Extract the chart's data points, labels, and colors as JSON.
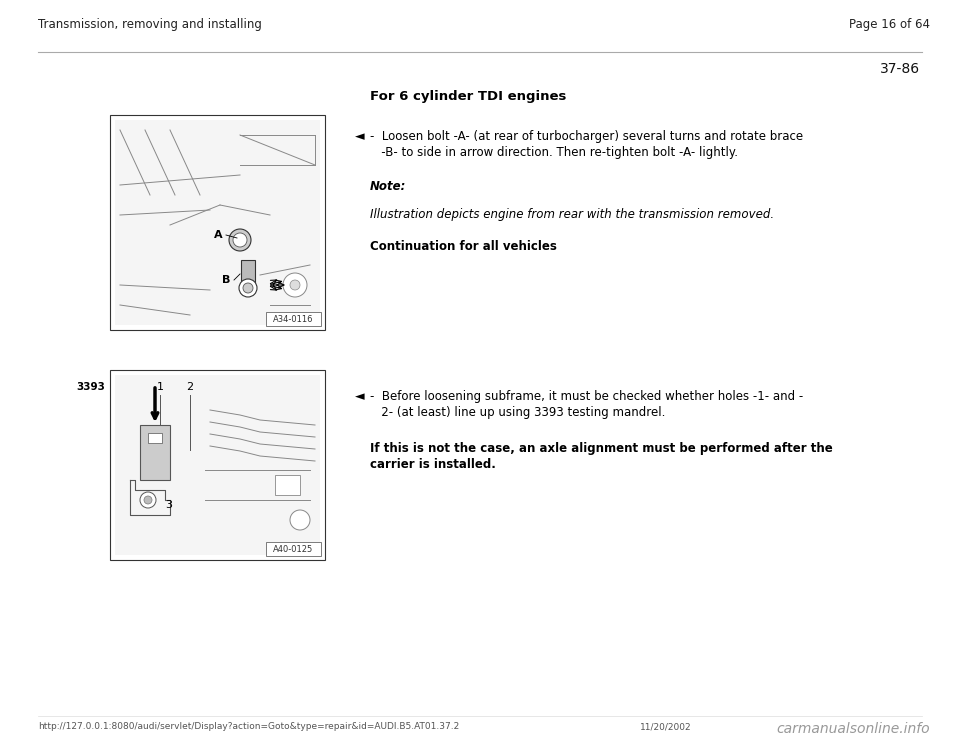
{
  "bg_color": "#ffffff",
  "header_left": "Transmission, removing and installing",
  "header_right": "Page 16 of 64",
  "section_number": "37-86",
  "heading1": "For 6 cylinder TDI engines",
  "arrow_symbol": "◄",
  "block1_text_line1": "-  Loosen bolt -A- (at rear of turbocharger) several turns and rotate brace",
  "block1_text_line2": "   -B- to side in arrow direction. Then re-tighten bolt -A- lightly.",
  "note_label": "Note:",
  "note_text": "Illustration depicts engine from rear with the transmission removed.",
  "continuation_text": "Continuation for all vehicles",
  "block2_text_line1": "-  Before loosening subframe, it must be checked whether holes -1- and -",
  "block2_text_line2": "   2- (at least) line up using 3393 testing mandrel.",
  "bold_text_line1": "If this is not the case, an axle alignment must be performed after the",
  "bold_text_line2": "carrier is installed.",
  "footer_url": "http://127.0.0.1:8080/audi/servlet/Display?action=Goto&type=repair&id=AUDI.B5.AT01.37.2",
  "footer_date": "11/20/2002",
  "footer_watermark": "carmanualsonline.info",
  "text_color": "#000000",
  "gray_line": "#999999",
  "header_fontsize": 8.5,
  "body_fontsize": 8.5,
  "note_fontsize": 8.5,
  "footer_fontsize": 6.5
}
